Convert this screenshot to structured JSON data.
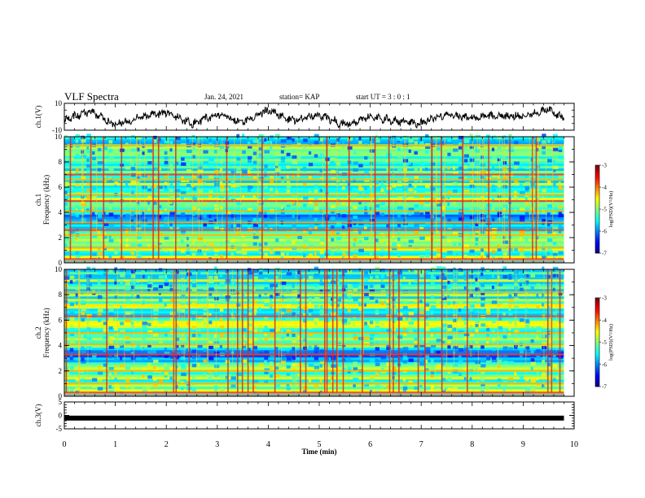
{
  "header": {
    "title": "VLF Spectra",
    "date": "Jan. 24, 2021",
    "station": "station= KAP",
    "start": "start  UT =   3 : 0  : 1"
  },
  "chart_data": [
    {
      "type": "line",
      "panel": "ch1-waveform",
      "ylabel": "ch.1(V)",
      "ylim": [
        -10,
        10
      ],
      "yticks": [
        "10",
        "-10"
      ],
      "x_range_min": [
        0,
        9.8
      ],
      "summary_x": [
        0,
        0.5,
        1,
        1.5,
        2,
        2.5,
        3,
        3.5,
        4,
        4.5,
        5,
        5.5,
        6,
        6.5,
        7,
        7.5,
        8,
        8.5,
        9,
        9.5,
        9.8
      ],
      "summary_y": [
        -2,
        4,
        -6,
        0,
        3,
        -5,
        2,
        -4,
        5,
        -3,
        1,
        -6,
        0,
        -3,
        -5,
        2,
        -1,
        1,
        0,
        6,
        -2
      ],
      "color": "#000000"
    },
    {
      "type": "heatmap",
      "panel": "ch1-spectrogram",
      "ylabel": "ch.1\nFrequency (kHz)",
      "ylabel_lines": [
        "ch.1",
        "Frequency (kHz)"
      ],
      "ylim": [
        0,
        10
      ],
      "yticks": [
        "0",
        "2",
        "4",
        "6",
        "8",
        "10"
      ],
      "x_range_min": [
        0,
        9.8
      ],
      "colorbar": {
        "label": "log(PSD)(V²/Hz)",
        "range": [
          -7,
          -3
        ],
        "ticks": [
          "-3",
          "-4",
          "-5",
          "-6",
          "-7"
        ]
      },
      "bands_khz": [
        0.3,
        1.2,
        2.2,
        2.6,
        3.2,
        4.1,
        4.9,
        5.4,
        6.6,
        7.0,
        9.3
      ]
    },
    {
      "type": "heatmap",
      "panel": "ch2-spectrogram",
      "ylabel": "ch.2\nFrequency (kHz)",
      "ylabel_lines": [
        "ch.2",
        "Frequency (kHz)"
      ],
      "ylim": [
        0,
        10
      ],
      "yticks": [
        "0",
        "2",
        "4",
        "6",
        "8",
        "10"
      ],
      "x_range_min": [
        0,
        9.8
      ],
      "colorbar": {
        "label": "log(PSD)(V²/Hz)",
        "range": [
          -7,
          -3
        ],
        "ticks": [
          "-3",
          "-4",
          "-5",
          "-6",
          "-7"
        ]
      },
      "bands_khz": [
        0.3,
        1.0,
        2.0,
        3.3,
        4.1,
        5.0,
        6.3,
        8.2
      ]
    },
    {
      "type": "line",
      "panel": "ch3-waveform",
      "ylabel": "ch.3(V)",
      "ylim": [
        -5,
        5
      ],
      "yticks": [
        "5",
        "0",
        "-5"
      ],
      "x": [
        0,
        9.8
      ],
      "y": [
        -1,
        -1
      ],
      "color": "#000000"
    }
  ],
  "x_axis": {
    "label": "Time  (min)",
    "ticks": [
      "0",
      "1",
      "2",
      "3",
      "4",
      "5",
      "6",
      "7",
      "8",
      "9",
      "10"
    ],
    "range": [
      0,
      10
    ]
  }
}
